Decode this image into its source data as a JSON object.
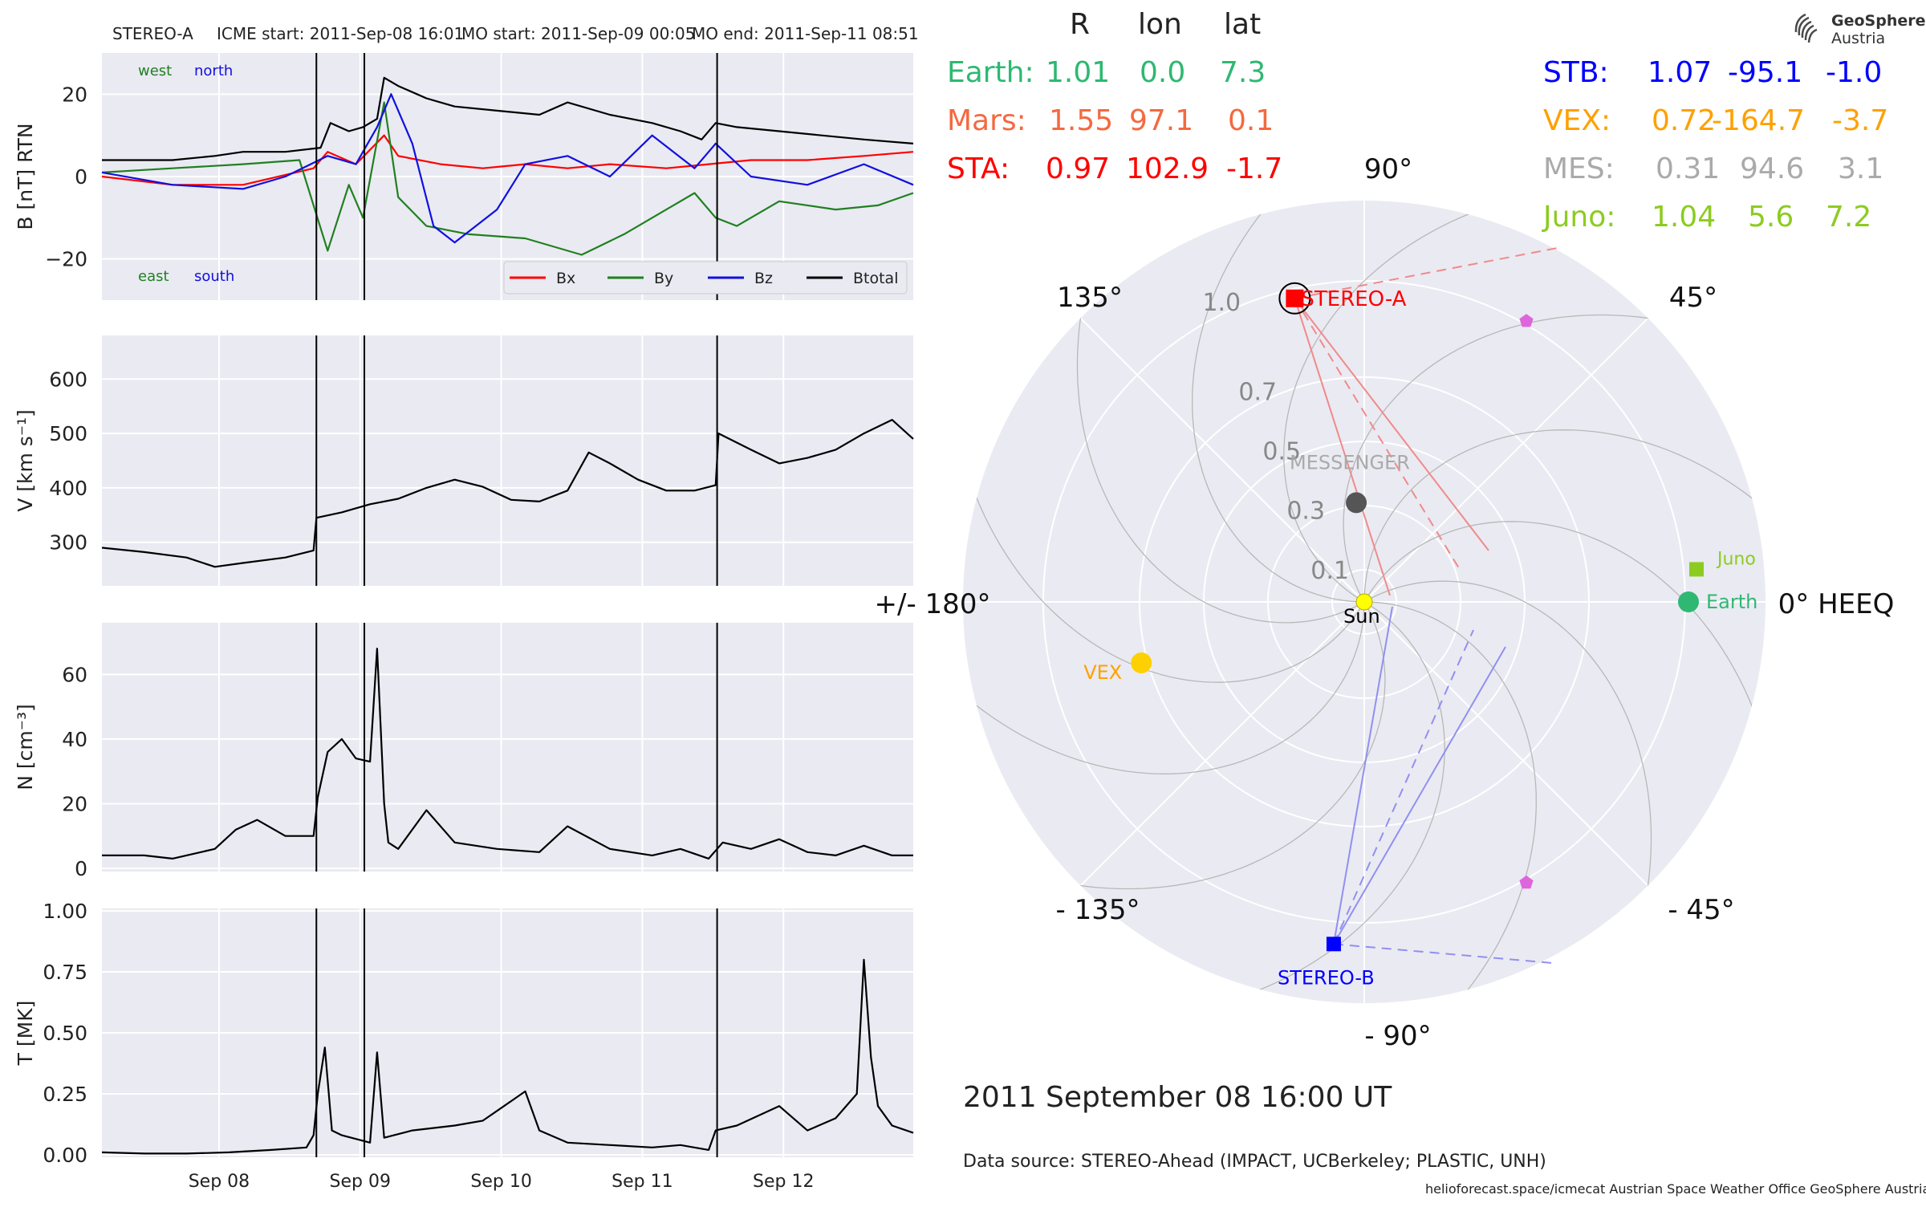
{
  "panel_header": {
    "spacecraft": "STEREO-A",
    "icme_start": "ICME start: 2011-Sep-08 16:01",
    "mo_start": "MO start: 2011-Sep-09 00:05",
    "mo_end": "MO end: 2011-Sep-11 08:51"
  },
  "logo": {
    "line1": "GeoSphere",
    "line2": "Austria"
  },
  "position_table": {
    "headers": [
      "R",
      "lon",
      "lat"
    ],
    "left": [
      {
        "name": "Earth:",
        "r": "1.01",
        "lon": "0.0",
        "lat": "7.3",
        "color": "#2eb872"
      },
      {
        "name": "Mars:",
        "r": "1.55",
        "lon": "97.1",
        "lat": "0.1",
        "color": "#f4693f"
      },
      {
        "name": "STA:",
        "r": "0.97",
        "lon": "102.9",
        "lat": "-1.7",
        "color": "#ff0000"
      }
    ],
    "right": [
      {
        "name": "STB:",
        "r": "1.07",
        "lon": "-95.1",
        "lat": "-1.0",
        "color": "#0000ff"
      },
      {
        "name": "VEX:",
        "r": "0.72",
        "lon": "-164.7",
        "lat": "-3.7",
        "color": "#ffa000"
      },
      {
        "name": "MES:",
        "r": "0.31",
        "lon": "94.6",
        "lat": "3.1",
        "color": "#aaaaaa"
      },
      {
        "name": "Juno:",
        "r": "1.04",
        "lon": "5.6",
        "lat": "7.2",
        "color": "#8ccc20"
      }
    ]
  },
  "footer": {
    "datetime": "2011 September 08  16:00 UT",
    "data_source": "Data source: STEREO-Ahead (IMPACT, UCBerkeley; PLASTIC, UNH)",
    "credits": "helioforecast.space/icmecat   Austrian Space Weather Office   GeoSphere Austria"
  },
  "chart_data": [
    {
      "type": "line",
      "panel": "magnetic_field",
      "ylabel": "B [nT] RTN",
      "ylim": [
        -30,
        30
      ],
      "yticks": [
        20,
        0,
        -20
      ],
      "yticklabels": [
        "20",
        "0",
        "−20"
      ],
      "xlim": [
        0,
        5.75
      ],
      "grid": true,
      "annotations_top": [
        {
          "text": "west",
          "color": "#208020"
        },
        {
          "text": "north",
          "color": "#1010e0"
        }
      ],
      "annotations_bottom": [
        {
          "text": "east",
          "color": "#208020"
        },
        {
          "text": "south",
          "color": "#1010e0"
        }
      ],
      "legend": {
        "placement": "lower-right",
        "entries": [
          "Bx",
          "By",
          "Bz",
          "Btotal"
        ]
      },
      "series": [
        {
          "name": "Btotal",
          "color": "#000000",
          "x": [
            0,
            0.5,
            0.8,
            1.0,
            1.3,
            1.55,
            1.62,
            1.75,
            1.85,
            1.95,
            2.0,
            2.1,
            2.3,
            2.5,
            2.8,
            3.1,
            3.3,
            3.6,
            3.9,
            4.1,
            4.25,
            4.35,
            4.5,
            4.8,
            5.1,
            5.4,
            5.75
          ],
          "y": [
            4,
            4,
            5,
            6,
            6,
            7,
            13,
            11,
            12,
            14,
            24,
            22,
            19,
            17,
            16,
            15,
            18,
            15,
            13,
            11,
            9,
            13,
            12,
            11,
            10,
            9,
            8
          ]
        },
        {
          "name": "Bx",
          "color": "#ff0000",
          "x": [
            0,
            0.5,
            1.0,
            1.5,
            1.6,
            1.8,
            2.0,
            2.1,
            2.4,
            2.7,
            3.0,
            3.3,
            3.6,
            4.0,
            4.3,
            4.6,
            5.0,
            5.4,
            5.75
          ],
          "y": [
            0,
            -2,
            -2,
            2,
            6,
            3,
            10,
            5,
            3,
            2,
            3,
            2,
            3,
            2,
            3,
            4,
            4,
            5,
            6
          ]
        },
        {
          "name": "By",
          "color": "#208020",
          "x": [
            0,
            0.5,
            1.0,
            1.4,
            1.6,
            1.75,
            1.85,
            2.0,
            2.1,
            2.3,
            2.6,
            3.0,
            3.4,
            3.7,
            4.0,
            4.2,
            4.35,
            4.5,
            4.8,
            5.2,
            5.5,
            5.75
          ],
          "y": [
            1,
            2,
            3,
            4,
            -18,
            -2,
            -10,
            18,
            -5,
            -12,
            -14,
            -15,
            -19,
            -14,
            -8,
            -4,
            -10,
            -12,
            -6,
            -8,
            -7,
            -4
          ]
        },
        {
          "name": "Bz",
          "color": "#1010e0",
          "x": [
            0,
            0.5,
            1.0,
            1.3,
            1.6,
            1.8,
            1.95,
            2.05,
            2.2,
            2.35,
            2.5,
            2.8,
            3.0,
            3.3,
            3.6,
            3.9,
            4.2,
            4.35,
            4.6,
            5.0,
            5.4,
            5.75
          ],
          "y": [
            1,
            -2,
            -3,
            0,
            5,
            3,
            12,
            20,
            8,
            -12,
            -16,
            -8,
            3,
            5,
            0,
            10,
            2,
            8,
            0,
            -2,
            3,
            -2
          ]
        }
      ]
    },
    {
      "type": "line",
      "panel": "speed",
      "ylabel": "V [km s⁻¹]",
      "ylim": [
        220,
        680
      ],
      "yticks": [
        600,
        500,
        400,
        300
      ],
      "yticklabels": [
        "600",
        "500",
        "400",
        "300"
      ],
      "xlim": [
        0,
        5.75
      ],
      "grid": true,
      "series": [
        {
          "name": "V",
          "color": "#000000",
          "x": [
            0,
            0.3,
            0.6,
            0.8,
            1.0,
            1.3,
            1.5,
            1.52,
            1.7,
            1.9,
            2.1,
            2.3,
            2.5,
            2.7,
            2.9,
            3.1,
            3.3,
            3.45,
            3.6,
            3.8,
            4.0,
            4.2,
            4.35,
            4.37,
            4.6,
            4.8,
            5.0,
            5.2,
            5.4,
            5.6,
            5.75
          ],
          "y": [
            290,
            282,
            272,
            255,
            262,
            272,
            285,
            345,
            355,
            370,
            380,
            400,
            415,
            402,
            378,
            375,
            395,
            465,
            445,
            415,
            395,
            395,
            405,
            500,
            470,
            445,
            455,
            470,
            500,
            525,
            490
          ]
        }
      ]
    },
    {
      "type": "line",
      "panel": "density",
      "ylabel": "N [cm⁻³]",
      "ylim": [
        -1,
        76
      ],
      "yticks": [
        60,
        40,
        20,
        0
      ],
      "yticklabels": [
        "60",
        "40",
        "20",
        "0"
      ],
      "xlim": [
        0,
        5.75
      ],
      "grid": true,
      "series": [
        {
          "name": "N",
          "color": "#000000",
          "x": [
            0,
            0.3,
            0.5,
            0.8,
            0.95,
            1.1,
            1.3,
            1.5,
            1.53,
            1.6,
            1.7,
            1.8,
            1.9,
            1.95,
            2.0,
            2.03,
            2.1,
            2.3,
            2.5,
            2.8,
            3.1,
            3.3,
            3.6,
            3.9,
            4.1,
            4.3,
            4.4,
            4.6,
            4.8,
            5.0,
            5.2,
            5.4,
            5.6,
            5.75
          ],
          "y": [
            4,
            4,
            3,
            6,
            12,
            15,
            10,
            10,
            22,
            36,
            40,
            34,
            33,
            68,
            20,
            8,
            6,
            18,
            8,
            6,
            5,
            13,
            6,
            4,
            6,
            3,
            8,
            6,
            9,
            5,
            4,
            7,
            4,
            4
          ]
        }
      ]
    },
    {
      "type": "line",
      "panel": "temperature",
      "ylabel": "T [MK]",
      "ylim": [
        -0.01,
        1.01
      ],
      "yticks": [
        1.0,
        0.75,
        0.5,
        0.25,
        0.0
      ],
      "yticklabels": [
        "1.00",
        "0.75",
        "0.50",
        "0.25",
        "0.00"
      ],
      "xlim": [
        0,
        5.75
      ],
      "xticks": [
        0.83,
        1.83,
        2.83,
        3.83,
        4.83
      ],
      "xticklabels": [
        "Sep 08",
        "Sep 09",
        "Sep 10",
        "Sep 11",
        "Sep 12"
      ],
      "grid": true,
      "series": [
        {
          "name": "T",
          "color": "#000000",
          "x": [
            0,
            0.3,
            0.6,
            0.9,
            1.2,
            1.45,
            1.5,
            1.53,
            1.58,
            1.63,
            1.7,
            1.9,
            1.95,
            2.0,
            2.2,
            2.5,
            2.7,
            2.85,
            3.0,
            3.1,
            3.3,
            3.6,
            3.9,
            4.1,
            4.3,
            4.35,
            4.5,
            4.8,
            5.0,
            5.2,
            5.35,
            5.4,
            5.45,
            5.5,
            5.6,
            5.75
          ],
          "y": [
            0.01,
            0.005,
            0.005,
            0.01,
            0.02,
            0.03,
            0.08,
            0.25,
            0.44,
            0.1,
            0.08,
            0.05,
            0.42,
            0.07,
            0.1,
            0.12,
            0.14,
            0.2,
            0.26,
            0.1,
            0.05,
            0.04,
            0.03,
            0.04,
            0.02,
            0.1,
            0.12,
            0.2,
            0.1,
            0.15,
            0.25,
            0.8,
            0.4,
            0.2,
            0.12,
            0.09
          ]
        }
      ]
    },
    {
      "type": "polar",
      "panel": "spacecraft_positions",
      "rlim": [
        0,
        1.25
      ],
      "rticks": [
        0.1,
        0.3,
        0.5,
        0.7,
        1.0
      ],
      "rticklabels": [
        "0.1",
        "0.3",
        "0.5",
        "0.7",
        "1.0"
      ],
      "angle_labels": [
        {
          "deg": 0,
          "text": "0° HEEQ"
        },
        {
          "deg": 45,
          "text": "45°"
        },
        {
          "deg": 90,
          "text": "90°"
        },
        {
          "deg": 135,
          "text": "135°"
        },
        {
          "deg": 180,
          "text": "+/- 180°"
        },
        {
          "deg": -135,
          "text": "- 135°"
        },
        {
          "deg": -90,
          "text": "- 90°"
        },
        {
          "deg": -45,
          "text": "- 45°"
        }
      ],
      "objects": [
        {
          "label": "Sun",
          "r": 0.0,
          "lon": 0,
          "color": "#ffff00",
          "marker": "circle"
        },
        {
          "label": "Earth",
          "r": 1.01,
          "lon": 0.0,
          "color": "#2eb872",
          "marker": "circle"
        },
        {
          "label": "Juno",
          "r": 1.04,
          "lon": 5.6,
          "color": "#8ccc20",
          "marker": "square"
        },
        {
          "label": "STEREO-A",
          "r": 0.97,
          "lon": 102.9,
          "color": "#ff0000",
          "marker": "square"
        },
        {
          "label": "STEREO-B",
          "r": 1.07,
          "lon": -95.1,
          "color": "#0000ff",
          "marker": "square"
        },
        {
          "label": "VEX",
          "r": 0.72,
          "lon": -164.7,
          "color": "#ffd000",
          "marker": "circle"
        },
        {
          "label": "MESSENGER",
          "r": 0.31,
          "lon": 94.6,
          "color": "#555555",
          "marker": "circle"
        },
        {
          "label": "",
          "r": 1.01,
          "lon": 60,
          "color": "#dd66dd",
          "marker": "pentagon"
        },
        {
          "label": "",
          "r": 1.01,
          "lon": -60,
          "color": "#dd66dd",
          "marker": "pentagon"
        }
      ]
    }
  ]
}
